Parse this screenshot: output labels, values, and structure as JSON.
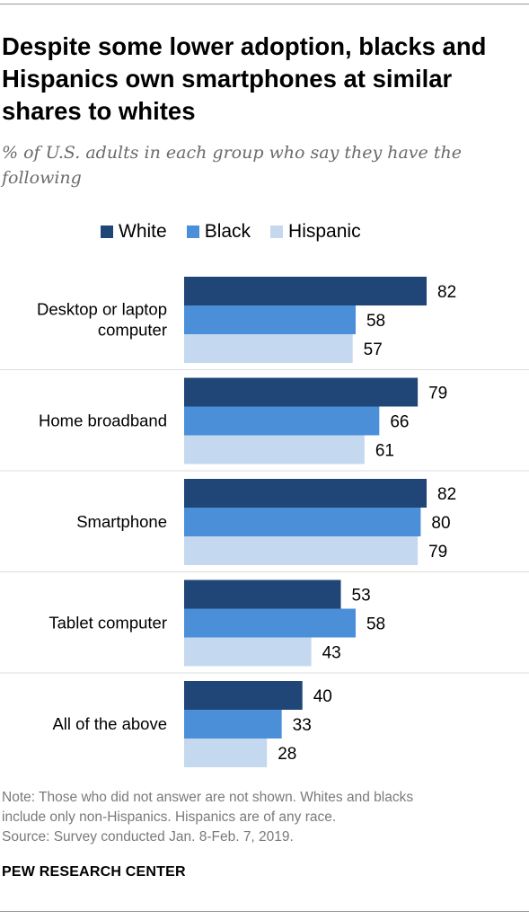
{
  "title": "Despite some lower adoption, blacks and Hispanics own smartphones at similar shares to whites",
  "subtitle": "% of U.S. adults in each group who say they have the following",
  "notes": [
    "Note: Those who did not answer are not shown. Whites and blacks",
    "include only non-Hispanics. Hispanics are of any race.",
    "Source: Survey conducted Jan. 8-Feb. 7, 2019."
  ],
  "footer": "PEW RESEARCH CENTER",
  "chart_data": {
    "type": "bar",
    "orientation": "horizontal",
    "title": "Despite some lower adoption, blacks and Hispanics own smartphones at similar shares to whites",
    "subtitle": "% of U.S. adults in each group who say they have the following",
    "categories": [
      "Desktop or laptop computer",
      "Home broadband",
      "Smartphone",
      "Tablet computer",
      "All of the above"
    ],
    "category_lines": [
      [
        "Desktop or laptop",
        "computer"
      ],
      [
        "Home broadband"
      ],
      [
        "Smartphone"
      ],
      [
        "Tablet computer"
      ],
      [
        "All of the above"
      ]
    ],
    "series": [
      {
        "name": "White",
        "color": "#1f4677",
        "values": [
          82,
          79,
          82,
          53,
          40
        ]
      },
      {
        "name": "Black",
        "color": "#4a8fd8",
        "values": [
          58,
          66,
          80,
          58,
          33
        ]
      },
      {
        "name": "Hispanic",
        "color": "#c4d8f0",
        "values": [
          57,
          61,
          79,
          43,
          28
        ]
      }
    ],
    "xlim": [
      0,
      100
    ],
    "legend_position": "top",
    "grid": false,
    "separator_color": "#dddddd"
  }
}
